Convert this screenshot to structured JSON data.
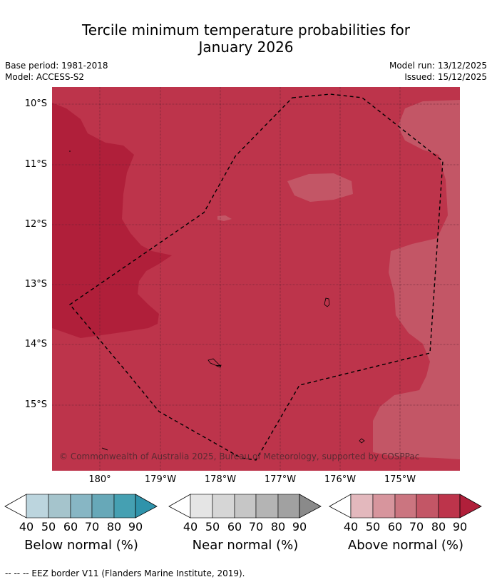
{
  "title_line1": "Tercile minimum temperature probabilities for",
  "title_line2": "January 2026",
  "base_period": "Base period: 1981-2018",
  "model": "Model: ACCESS-S2",
  "model_run": "Model run: 13/12/2025",
  "issued": "Issued: 15/12/2025",
  "lat_labels": [
    "10°S",
    "11°S",
    "12°S",
    "13°S",
    "14°S",
    "15°S"
  ],
  "lon_labels": [
    "180°",
    "179°W",
    "178°W",
    "177°W",
    "176°W",
    "175°W"
  ],
  "copyright": "© Commonwealth of Australia 2025, Bureau of Meteorology, supported by COSPPac",
  "colorbars": [
    {
      "title": "Below normal (%)",
      "ticks": [
        "40",
        "50",
        "60",
        "70",
        "80",
        "90"
      ],
      "colors": [
        "#bcd5de",
        "#a5c4cc",
        "#87b6c4",
        "#67a8b8",
        "#45a0b2",
        "#2f93ab"
      ]
    },
    {
      "title": "Near normal (%)",
      "ticks": [
        "40",
        "50",
        "60",
        "70",
        "80",
        "90"
      ],
      "colors": [
        "#e5e5e5",
        "#d6d6d6",
        "#c6c6c6",
        "#b4b4b4",
        "#a1a1a1",
        "#8a8a8a"
      ]
    },
    {
      "title": "Above normal (%)",
      "ticks": [
        "40",
        "50",
        "60",
        "70",
        "80",
        "90"
      ],
      "colors": [
        "#e3b8bd",
        "#d7959d",
        "#cb7580",
        "#c35666",
        "#bd344b",
        "#b01f3a"
      ]
    }
  ],
  "map_colors": {
    "above_70_80": "#c35666",
    "above_80_90": "#bd344b",
    "above_90": "#b01f3a"
  },
  "footnote": "--  --  -- EEZ border V11 (Flanders Marine Institute, 2019)."
}
